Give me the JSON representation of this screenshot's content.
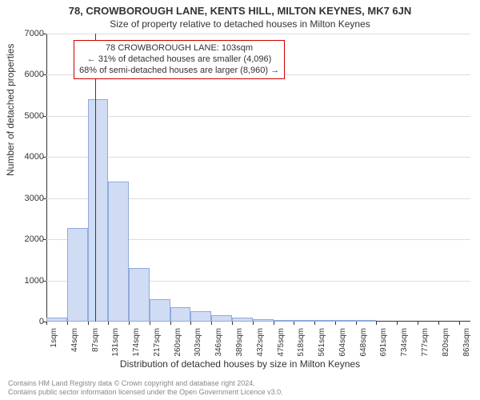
{
  "title": "78, CROWBOROUGH LANE, KENTS HILL, MILTON KEYNES, MK7 6JN",
  "subtitle": "Size of property relative to detached houses in Milton Keynes",
  "chart": {
    "type": "histogram",
    "y_axis": {
      "title": "Number of detached properties",
      "min": 0,
      "max": 7000,
      "tick_step": 1000,
      "grid_color": "#dddddd",
      "label_fontsize": 11
    },
    "x_axis": {
      "title": "Distribution of detached houses by size in Milton Keynes",
      "tick_labels": [
        "1sqm",
        "44sqm",
        "87sqm",
        "131sqm",
        "174sqm",
        "217sqm",
        "260sqm",
        "303sqm",
        "346sqm",
        "389sqm",
        "432sqm",
        "475sqm",
        "518sqm",
        "561sqm",
        "604sqm",
        "648sqm",
        "691sqm",
        "734sqm",
        "777sqm",
        "820sqm",
        "863sqm"
      ],
      "bin_width_sqm": 43,
      "x_min_sqm": 1,
      "x_max_sqm": 885,
      "label_fontsize": 10
    },
    "bars": {
      "values": [
        90,
        2280,
        5400,
        3400,
        1300,
        540,
        350,
        260,
        150,
        100,
        60,
        30,
        20,
        10,
        5,
        5,
        0,
        0,
        0,
        0
      ],
      "fill_color": "#cfdcf4",
      "border_color": "#8faadc"
    },
    "marker": {
      "value_sqm": 103,
      "color": "#cc0000"
    },
    "annotation": {
      "line1": "78 CROWBOROUGH LANE: 103sqm",
      "line2": "← 31% of detached houses are smaller (4,096)",
      "line3": "68% of semi-detached houses are larger (8,960) →",
      "border_color": "#cc0000",
      "fontsize": 11
    },
    "background_color": "#ffffff"
  },
  "footer": {
    "line1": "Contains HM Land Registry data © Crown copyright and database right 2024.",
    "line2": "Contains public sector information licensed under the Open Government Licence v3.0."
  }
}
